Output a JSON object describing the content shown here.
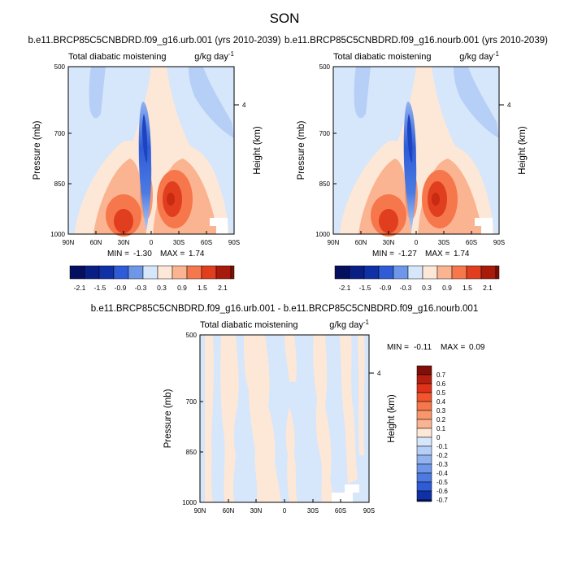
{
  "page": {
    "title": "SON"
  },
  "colors": {
    "positive_ramp": [
      "#fde8d7",
      "#fcd0b5",
      "#fbb491",
      "#f9976c",
      "#f6774b",
      "#ed5a32",
      "#e03e1e",
      "#c82a12",
      "#a81a0b",
      "#7f0f08"
    ],
    "negative_ramp": [
      "#d6e6fb",
      "#b6cff6",
      "#91b3f0",
      "#6e97ea",
      "#4c7ae2",
      "#2f5cd6",
      "#1c43c2",
      "#1030a5",
      "#0a1f86",
      "#050f60"
    ],
    "background_fill": "#d8e8fb",
    "frame": "#000000"
  },
  "chart_data": [
    {
      "type": "heatmap",
      "title": "b.e11.BRCP85C5CNBDRD.f09_g16.urb.001 (yrs 2010-2039)",
      "left_string": "Total diabatic moistening",
      "right_string": "g/kg day",
      "right_string_sup": "-1",
      "x_label": "",
      "y_label": "Pressure (mb)",
      "y2_label": "Height (km)",
      "x_ticks": [
        "90N",
        "60N",
        "30N",
        "0",
        "30S",
        "60S",
        "90S"
      ],
      "y_ticks": [
        "500",
        "700",
        "850",
        "1000"
      ],
      "y2_ticks": [
        "4"
      ],
      "min_label": "MIN =",
      "min_value": "-1.30",
      "max_label": "MAX =",
      "max_value": "1.74",
      "colorbar_levels": [
        "-2.1",
        "-1.5",
        "-0.9",
        "-0.3",
        "0.3",
        "0.9",
        "1.5",
        "2.1"
      ],
      "data_summary": {
        "min": -1.3,
        "max": 1.74
      }
    },
    {
      "type": "heatmap",
      "title": "b.e11.BRCP85C5CNBDRD.f09_g16.nourb.001 (yrs 2010-2039)",
      "left_string": "Total diabatic moistening",
      "right_string": "g/kg day",
      "right_string_sup": "-1",
      "x_label": "",
      "y_label": "Pressure (mb)",
      "y2_label": "Height (km)",
      "x_ticks": [
        "90N",
        "60N",
        "30N",
        "0",
        "30S",
        "60S",
        "90S"
      ],
      "y_ticks": [
        "500",
        "700",
        "850",
        "1000"
      ],
      "y2_ticks": [
        "4"
      ],
      "min_label": "MIN =",
      "min_value": "-1.27",
      "max_label": "MAX =",
      "max_value": "1.74",
      "colorbar_levels": [
        "-2.1",
        "-1.5",
        "-0.9",
        "-0.3",
        "0.3",
        "0.9",
        "1.5",
        "2.1"
      ],
      "data_summary": {
        "min": -1.27,
        "max": 1.74
      }
    },
    {
      "type": "heatmap",
      "title": "b.e11.BRCP85C5CNBDRD.f09_g16.urb.001 - b.e11.BRCP85C5CNBDRD.f09_g16.nourb.001",
      "left_string": "Total diabatic moistening",
      "right_string": "g/kg day",
      "right_string_sup": "-1",
      "x_label": "",
      "y_label": "Pressure (mb)",
      "y2_label": "Height (km)",
      "x_ticks": [
        "90N",
        "60N",
        "30N",
        "0",
        "30S",
        "60S",
        "90S"
      ],
      "y_ticks": [
        "500",
        "700",
        "850",
        "1000"
      ],
      "y2_ticks": [
        "4"
      ],
      "min_label": "MIN =",
      "min_value": "-0.11",
      "max_label": "MAX =",
      "max_value": "0.09",
      "colorbar_levels": [
        "0.7",
        "0.6",
        "0.5",
        "0.4",
        "0.3",
        "0.2",
        "0.1",
        "0",
        "-0.1",
        "-0.2",
        "-0.3",
        "-0.4",
        "-0.5",
        "-0.6",
        "-0.7"
      ],
      "data_summary": {
        "min": -0.11,
        "max": 0.09
      }
    }
  ]
}
